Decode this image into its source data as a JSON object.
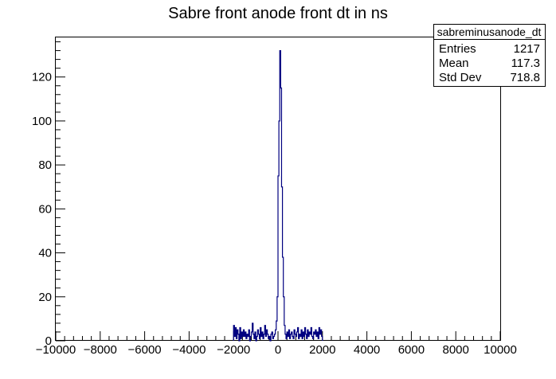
{
  "chart_data": {
    "type": "histogram",
    "title": "Sabre front anode front dt in ns",
    "xlim": [
      -10000,
      10000
    ],
    "ylim": [
      0,
      138
    ],
    "x_major_ticks": [
      -10000,
      -8000,
      -6000,
      -4000,
      -2000,
      0,
      2000,
      4000,
      6000,
      8000,
      10000
    ],
    "x_tick_labels": [
      "−10000",
      "−8000",
      "−6000",
      "−4000",
      "−2000",
      "0",
      "2000",
      "4000",
      "6000",
      "8000",
      "10000"
    ],
    "y_major_ticks": [
      0,
      20,
      40,
      60,
      80,
      100,
      120
    ],
    "y_tick_labels": [
      "0",
      "20",
      "40",
      "60",
      "80",
      "100",
      "120"
    ],
    "bin_width": 40,
    "bins_x_start": [
      -2000,
      -1960,
      -1920,
      -1880,
      -1840,
      -1800,
      -1760,
      -1720,
      -1680,
      -1640,
      -1600,
      -1560,
      -1520,
      -1480,
      -1440,
      -1400,
      -1360,
      -1320,
      -1280,
      -1240,
      -1200,
      -1160,
      -1120,
      -1080,
      -1040,
      -1000,
      -960,
      -920,
      -880,
      -840,
      -800,
      -760,
      -720,
      -680,
      -640,
      -600,
      -560,
      -520,
      -480,
      -440,
      -400,
      -360,
      -320,
      -280,
      -240,
      -200,
      -160,
      -120,
      -80,
      -40,
      0,
      40,
      80,
      120,
      160,
      200,
      240,
      280,
      320,
      360,
      400,
      440,
      480,
      520,
      560,
      600,
      640,
      680,
      720,
      760,
      800,
      840,
      880,
      920,
      960,
      1000,
      1040,
      1080,
      1120,
      1160,
      1200,
      1240,
      1280,
      1320,
      1360,
      1400,
      1440,
      1480,
      1520,
      1560,
      1600,
      1640,
      1680,
      1720,
      1760,
      1800,
      1840,
      1880,
      1920,
      1960
    ],
    "counts": [
      7,
      2,
      6,
      1,
      5,
      3,
      0,
      6,
      1,
      4,
      2,
      5,
      2,
      4,
      1,
      3,
      2,
      5,
      0,
      2,
      4,
      8,
      3,
      1,
      4,
      0,
      2,
      5,
      3,
      1,
      6,
      2,
      4,
      1,
      3,
      7,
      2,
      5,
      3,
      1,
      2,
      0,
      3,
      4,
      1,
      2,
      3,
      5,
      9,
      20,
      75,
      100,
      132,
      115,
      70,
      38,
      20,
      7,
      3,
      1,
      4,
      2,
      5,
      1,
      3,
      4,
      2,
      1,
      5,
      3,
      2,
      4,
      6,
      1,
      3,
      2,
      5,
      1,
      4,
      2,
      6,
      3,
      1,
      5,
      2,
      4,
      3,
      6,
      2,
      1,
      4,
      3,
      5,
      2,
      4,
      1,
      6,
      3,
      5,
      2
    ],
    "line_color": "#000080",
    "stats_box": {
      "name": "sabreminusanode_dt",
      "rows": [
        {
          "label": "Entries",
          "value": "1217"
        },
        {
          "label": "Mean",
          "value": "117.3"
        },
        {
          "label": "Std Dev",
          "value": "718.8"
        }
      ]
    }
  }
}
